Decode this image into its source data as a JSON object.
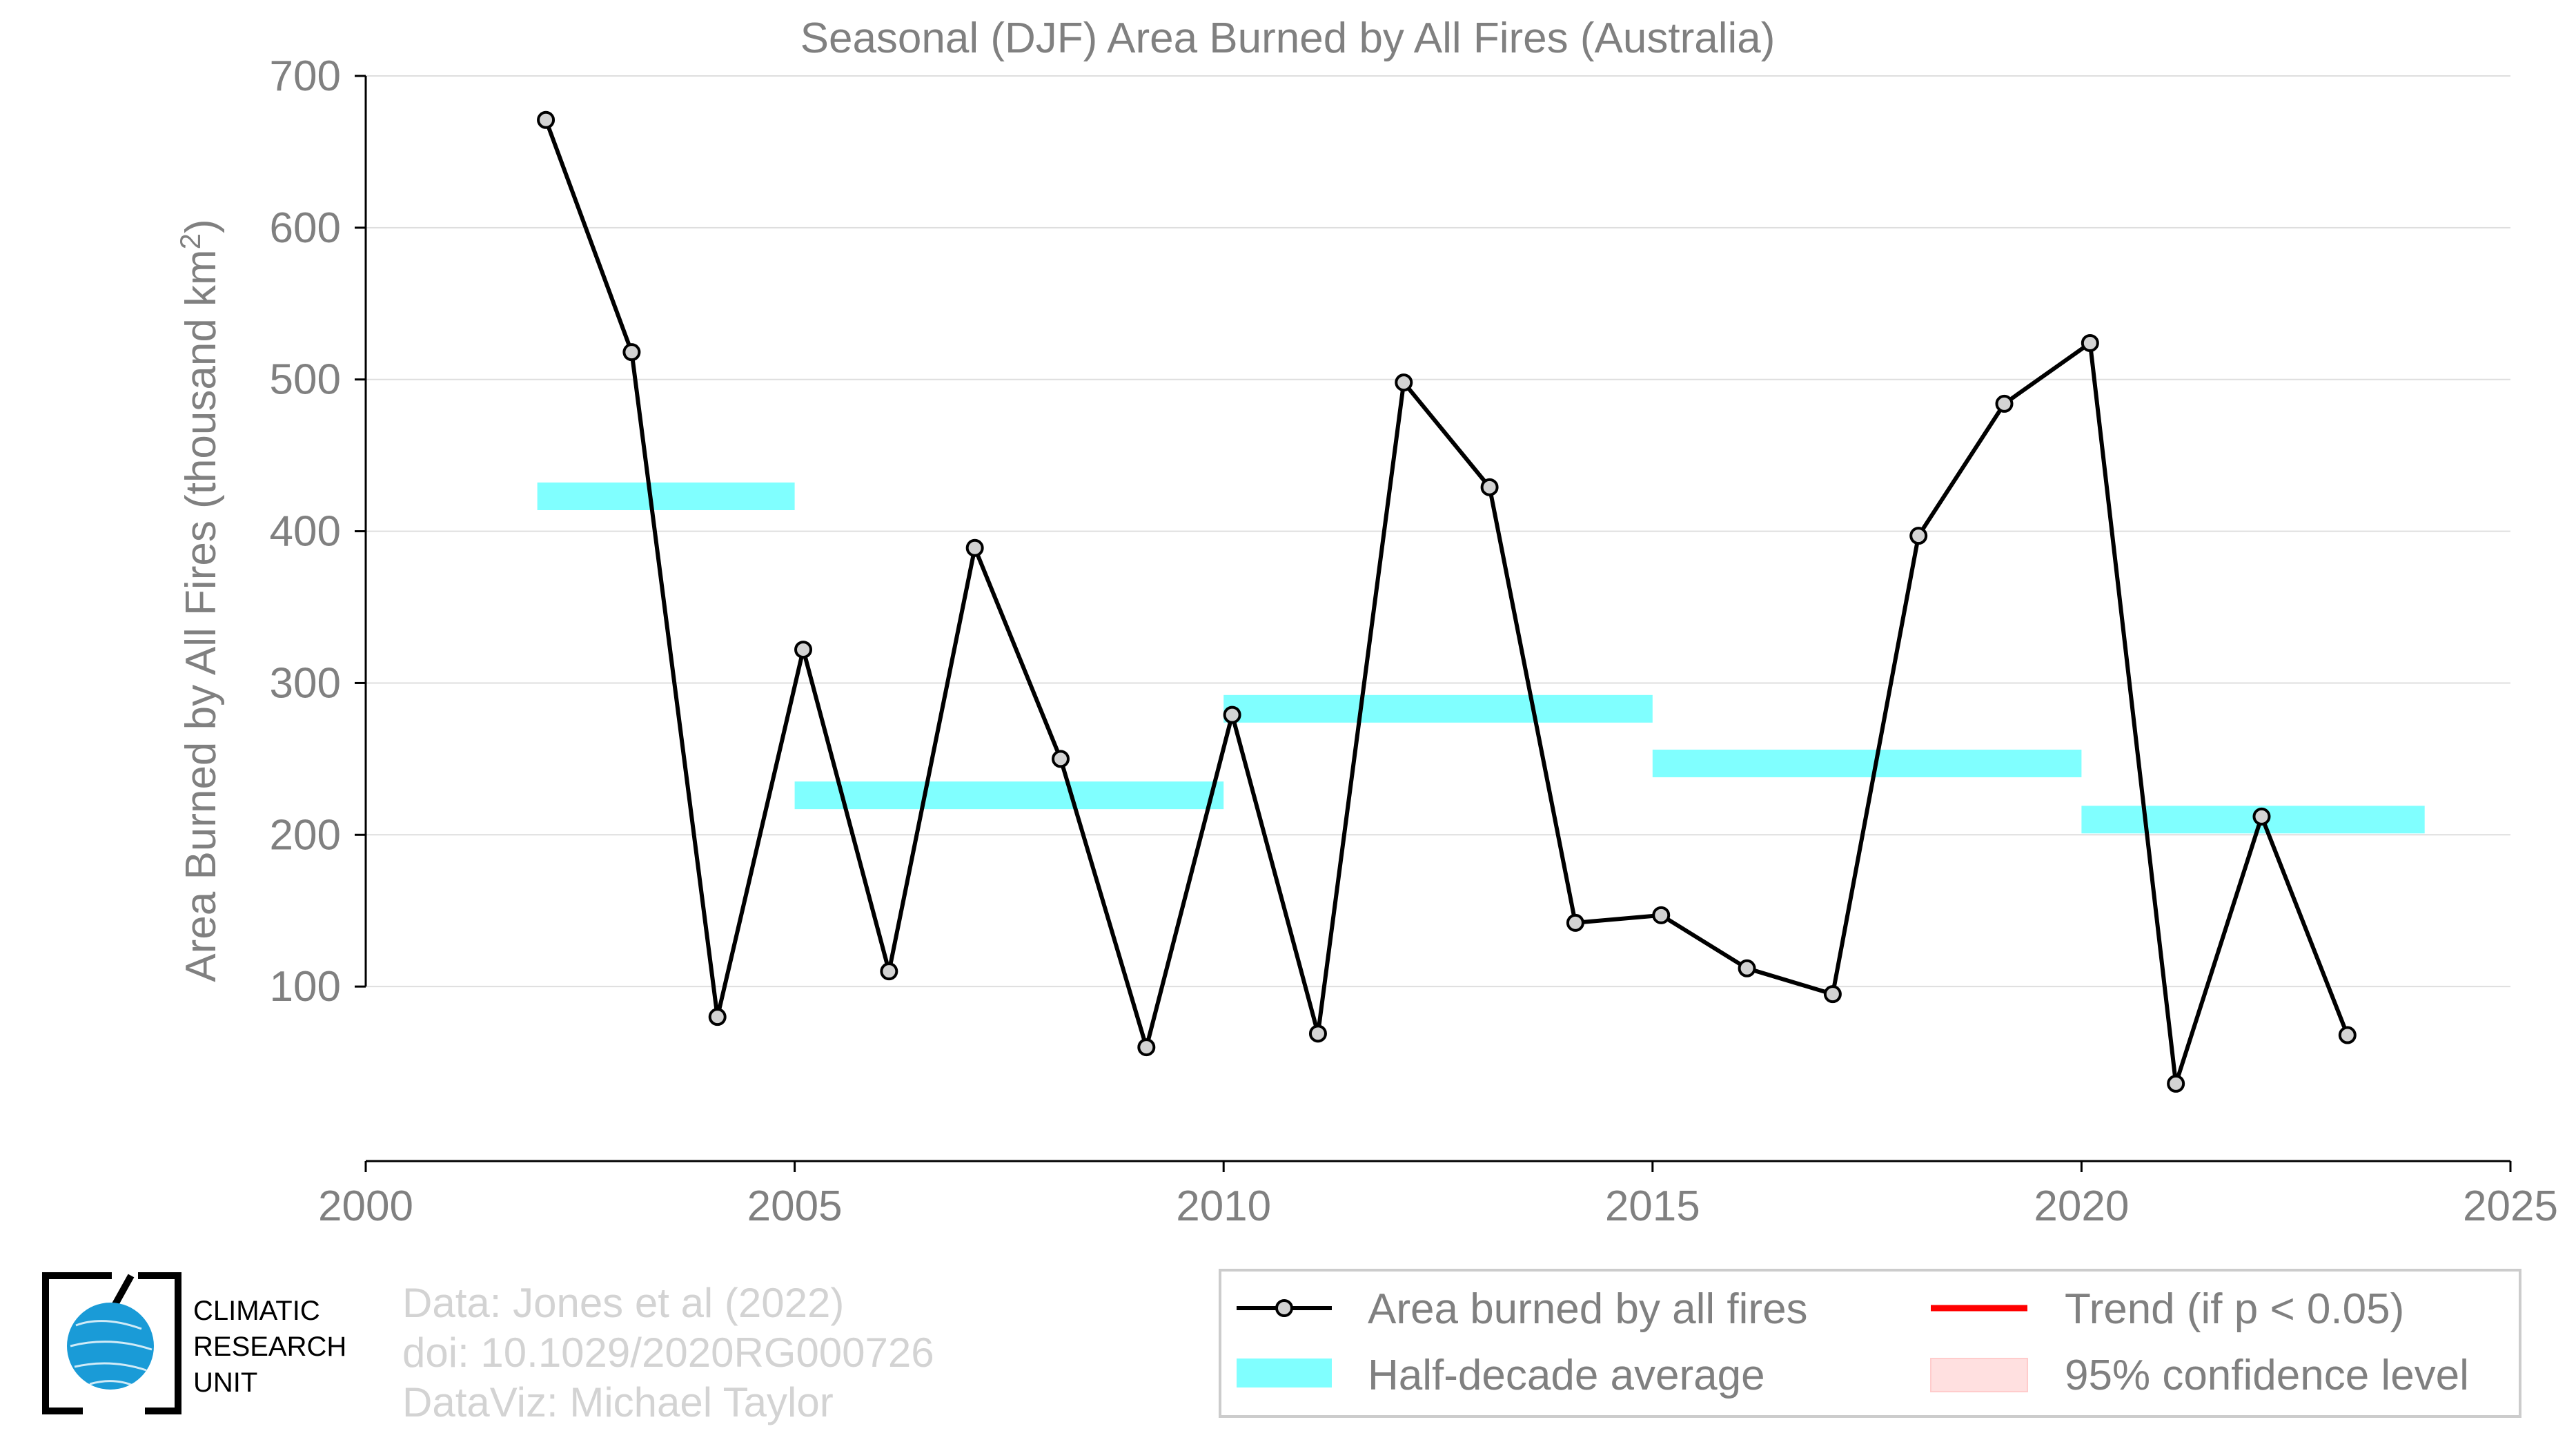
{
  "chart_data": {
    "type": "line",
    "title": "Seasonal (DJF) Area Burned by All Fires (Australia)",
    "xlabel": "",
    "ylabel": "Area Burned by All Fires (thousand km",
    "ylabel_sup": "2",
    "ylabel_close": ")",
    "xlim": [
      2000,
      2025
    ],
    "ylim": [
      -15,
      700
    ],
    "xticks": [
      2000,
      2005,
      2010,
      2015,
      2020,
      2025
    ],
    "yticks": [
      100,
      200,
      300,
      400,
      500,
      600,
      700
    ],
    "grid": true,
    "series": [
      {
        "name": "Area burned by all fires",
        "color": "#000000",
        "x": [
          2002,
          2003,
          2004,
          2005,
          2006,
          2007,
          2008,
          2009,
          2010,
          2011,
          2012,
          2013,
          2014,
          2015,
          2016,
          2017,
          2018,
          2019,
          2020,
          2021,
          2022,
          2023
        ],
        "y": [
          671,
          518,
          80,
          322,
          110,
          389,
          250,
          60,
          279,
          69,
          498,
          429,
          142,
          147,
          112,
          95,
          397,
          484,
          524,
          36,
          212,
          68
        ]
      }
    ],
    "half_decade_average": {
      "name": "Half-decade average",
      "color": "#80ffff",
      "segments": [
        {
          "x_start": 2002,
          "x_end": 2005,
          "value": 423
        },
        {
          "x_start": 2005,
          "x_end": 2010,
          "value": 226
        },
        {
          "x_start": 2010,
          "x_end": 2015,
          "value": 283
        },
        {
          "x_start": 2015,
          "x_end": 2020,
          "value": 247
        },
        {
          "x_start": 2020,
          "x_end": 2024,
          "value": 210
        }
      ]
    },
    "legend": {
      "placement": "bottom-right",
      "entries": [
        {
          "label": "Area burned by all fires",
          "kind": "line-marker",
          "color": "#000000"
        },
        {
          "label": "Trend (if p < 0.05)",
          "kind": "line",
          "color": "#ff0000"
        },
        {
          "label": "Half-decade average",
          "kind": "patch",
          "color": "#80ffff"
        },
        {
          "label": "95% confidence level",
          "kind": "patch",
          "color": "#ffe0e0"
        }
      ]
    }
  },
  "credits": {
    "line1": "Data: Jones et al (2022)",
    "line2": "doi: 10.1029/2020RG000726",
    "line3": "DataViz: Michael Taylor"
  },
  "logo": {
    "line1": "CLIMATIC",
    "line2": "RESEARCH",
    "line3": "UNIT",
    "color": "#1a9bd7"
  }
}
